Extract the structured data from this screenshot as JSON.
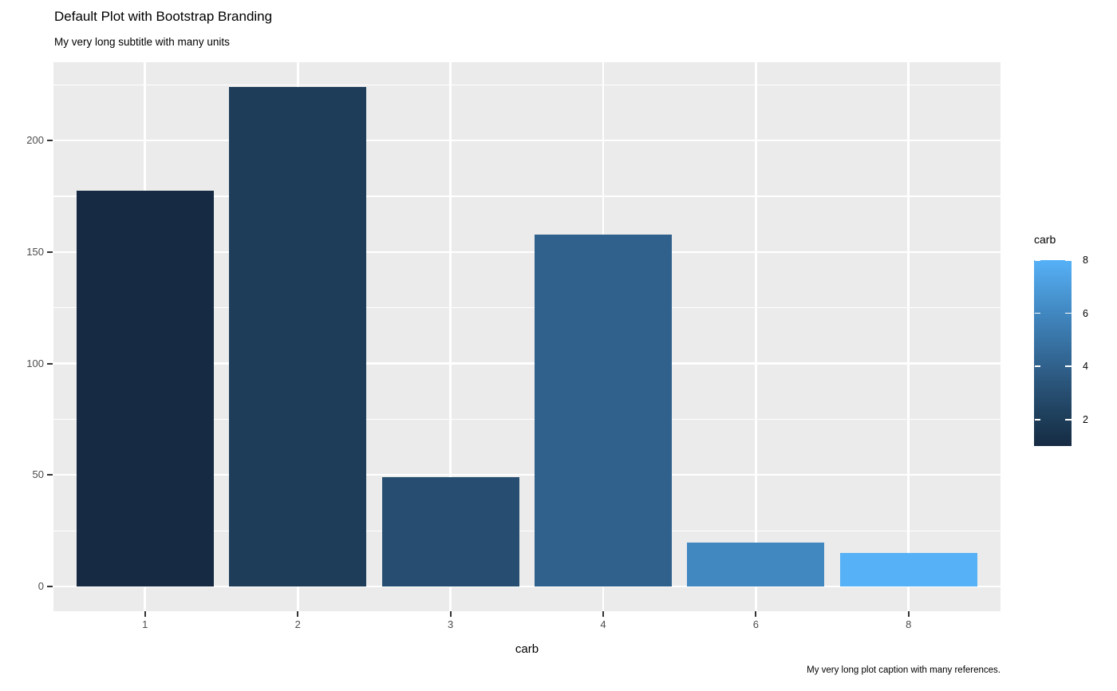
{
  "chart_data": {
    "type": "bar",
    "title": "Default Plot with Bootstrap Branding",
    "subtitle": "My very long subtitle with many units",
    "caption": "My very long plot caption with many references.",
    "xlabel": "carb",
    "ylabel": "",
    "categories": [
      "1",
      "2",
      "3",
      "4",
      "6",
      "8"
    ],
    "values": [
      177.4,
      224.0,
      48.9,
      157.9,
      19.7,
      15.0
    ],
    "bar_colors": [
      "#162B43",
      "#1D3D59",
      "#274E71",
      "#30618C",
      "#4187C0",
      "#56B1F7"
    ],
    "y_ticks": [
      0,
      50,
      100,
      150,
      200
    ],
    "y_minor_ticks": [
      25,
      75,
      125,
      175,
      225
    ],
    "ylim": [
      -11.2,
      235.2
    ],
    "grid": "white major+minor horizontal lines and white major vertical lines on grey panel",
    "panel_bg": "#EBEBEB",
    "tick_label_color": "#4D4D4D",
    "tick_mark_color": "#333333",
    "legend": {
      "title": "carb",
      "position": "right",
      "type": "colorbar",
      "range": [
        1,
        8
      ],
      "tick_values": [
        8,
        6,
        4,
        2
      ],
      "tick_labels": [
        "8",
        "6",
        "4",
        "2"
      ],
      "low_color": "#132B43",
      "high_color": "#56B1F7"
    }
  }
}
